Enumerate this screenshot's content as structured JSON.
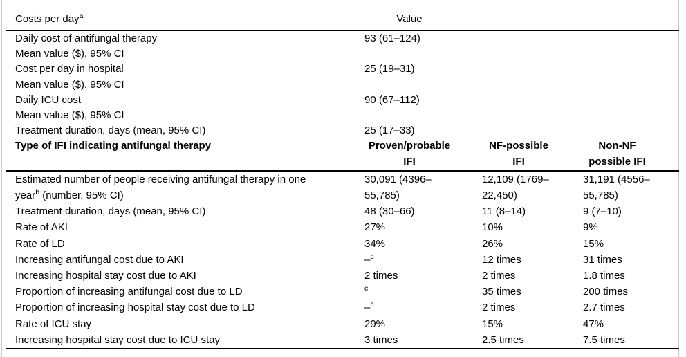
{
  "table": {
    "top_header": {
      "label_text": "Costs per day",
      "label_sup": "a",
      "value_label": "Value"
    },
    "top_rows": [
      {
        "label_lines": [
          "Daily cost of antifungal therapy",
          "Mean value ($), 95% CI"
        ],
        "value": "93 (61–124)"
      },
      {
        "label_lines": [
          "Cost per day in hospital",
          "Mean value ($), 95% CI"
        ],
        "value": "25 (19–31)"
      },
      {
        "label_lines": [
          "Daily ICU cost",
          "Mean value ($), 95% CI"
        ],
        "value": "90 (67–112)"
      },
      {
        "label_lines": [
          "Treatment duration, days (mean, 95% CI)"
        ],
        "value": "25 (17–33)"
      }
    ],
    "mid_header": {
      "label": "Type of IFI indicating antifungal therapy",
      "columns": [
        "Proven/probable\nIFI",
        "NF-possible\nIFI",
        "Non-NF\npossible IFI"
      ]
    },
    "rows": [
      {
        "label": {
          "pre": "Estimated number of people receiving antifungal therapy in one\nyear",
          "sup": "b",
          "post": " (number, 95% CI)"
        },
        "values": [
          "30,091 (4396–\n55,785)",
          "12,109 (1769–\n22,450)",
          "31,191 (4556–\n55,785)"
        ]
      },
      {
        "label": "Treatment duration, days (mean, 95% CI)",
        "values": [
          "48 (30–66)",
          "11 (8–14)",
          "9 (7–10)"
        ]
      },
      {
        "label": "Rate of AKI",
        "values": [
          "27%",
          "10%",
          "9%"
        ]
      },
      {
        "label": "Rate of LD",
        "values": [
          "34%",
          "26%",
          "15%"
        ]
      },
      {
        "label": "Increasing antifungal cost due to AKI",
        "values": [
          {
            "text": "–",
            "sup": "c"
          },
          "12 times",
          "31 times"
        ]
      },
      {
        "label": "Increasing hospital stay cost due to AKI",
        "values": [
          "2 times",
          "2 times",
          "1.8 times"
        ]
      },
      {
        "label": "Proportion of increasing antifungal cost due to LD",
        "values": [
          {
            "text": "",
            "sup": "c"
          },
          "35 times",
          "200 times"
        ]
      },
      {
        "label": "Proportion of increasing hospital stay cost due to LD",
        "values": [
          {
            "text": "–",
            "sup": "c"
          },
          "2 times",
          "2.7 times"
        ]
      },
      {
        "label": "Rate of ICU stay",
        "values": [
          "29%",
          "15%",
          "47%"
        ]
      },
      {
        "label": "Increasing hospital stay cost due to ICU stay",
        "values": [
          "3 times",
          "2.5 times",
          "7.5 times"
        ]
      }
    ]
  }
}
